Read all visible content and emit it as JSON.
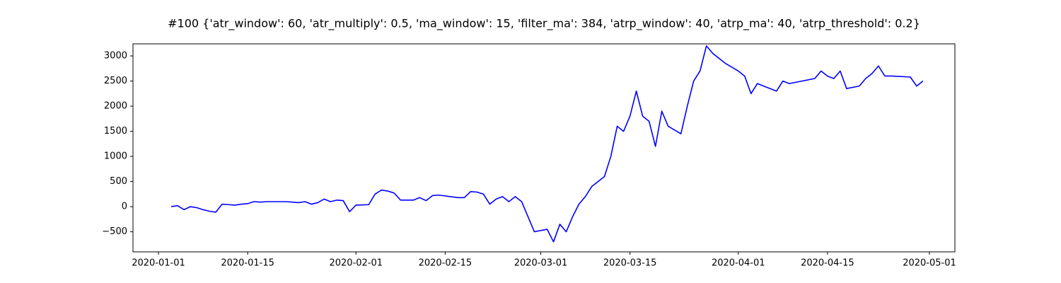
{
  "chart_data": {
    "type": "line",
    "title": "#100 {'atr_window': 60, 'atr_multiply': 0.5, 'ma_window': 15, 'filter_ma': 384, 'atrp_window': 40, 'atrp_ma': 40, 'atrp_threshold': 0.2}",
    "x": [
      "2020-01-03",
      "2020-01-04",
      "2020-01-05",
      "2020-01-06",
      "2020-01-07",
      "2020-01-08",
      "2020-01-09",
      "2020-01-10",
      "2020-01-11",
      "2020-01-12",
      "2020-01-13",
      "2020-01-14",
      "2020-01-15",
      "2020-01-16",
      "2020-01-17",
      "2020-01-18",
      "2020-01-21",
      "2020-01-22",
      "2020-01-23",
      "2020-01-24",
      "2020-01-25",
      "2020-01-26",
      "2020-01-27",
      "2020-01-28",
      "2020-01-29",
      "2020-01-30",
      "2020-01-31",
      "2020-02-01",
      "2020-02-03",
      "2020-02-04",
      "2020-02-05",
      "2020-02-06",
      "2020-02-07",
      "2020-02-08",
      "2020-02-10",
      "2020-02-11",
      "2020-02-12",
      "2020-02-13",
      "2020-02-14",
      "2020-02-17",
      "2020-02-18",
      "2020-02-19",
      "2020-02-20",
      "2020-02-21",
      "2020-02-22",
      "2020-02-23",
      "2020-02-24",
      "2020-02-25",
      "2020-02-26",
      "2020-02-27",
      "2020-02-28",
      "2020-02-29",
      "2020-03-02",
      "2020-03-03",
      "2020-03-04",
      "2020-03-05",
      "2020-03-06",
      "2020-03-07",
      "2020-03-08",
      "2020-03-09",
      "2020-03-10",
      "2020-03-11",
      "2020-03-12",
      "2020-03-13",
      "2020-03-14",
      "2020-03-15",
      "2020-03-16",
      "2020-03-17",
      "2020-03-18",
      "2020-03-19",
      "2020-03-20",
      "2020-03-21",
      "2020-03-23",
      "2020-03-24",
      "2020-03-25",
      "2020-03-26",
      "2020-03-27",
      "2020-03-28",
      "2020-03-30",
      "2020-04-01",
      "2020-04-02",
      "2020-04-03",
      "2020-04-04",
      "2020-04-06",
      "2020-04-07",
      "2020-04-08",
      "2020-04-09",
      "2020-04-13",
      "2020-04-14",
      "2020-04-15",
      "2020-04-16",
      "2020-04-17",
      "2020-04-18",
      "2020-04-20",
      "2020-04-21",
      "2020-04-22",
      "2020-04-23",
      "2020-04-24",
      "2020-04-25",
      "2020-04-28",
      "2020-04-29",
      "2020-04-30"
    ],
    "values": [
      0,
      20,
      -60,
      0,
      -20,
      -60,
      -90,
      -110,
      50,
      40,
      30,
      50,
      60,
      100,
      90,
      100,
      100,
      90,
      80,
      100,
      50,
      80,
      150,
      100,
      130,
      120,
      -100,
      30,
      40,
      250,
      330,
      310,
      270,
      130,
      130,
      180,
      120,
      220,
      230,
      180,
      180,
      300,
      290,
      250,
      50,
      150,
      200,
      100,
      200,
      100,
      -200,
      -500,
      -450,
      -700,
      -350,
      -500,
      -200,
      50,
      200,
      400,
      500,
      600,
      1000,
      1600,
      1500,
      1800,
      2300,
      1800,
      1700,
      1200,
      1900,
      1600,
      1450,
      2000,
      2500,
      2700,
      3200,
      3050,
      2850,
      2700,
      2600,
      2250,
      2450,
      2350,
      2300,
      2500,
      2450,
      2550,
      2700,
      2600,
      2550,
      2700,
      2350,
      2400,
      2550,
      2650,
      2800,
      2600,
      2600,
      2580,
      2400,
      2500
    ],
    "color": "#0000ff",
    "xlim": [
      "2019-12-28",
      "2020-05-05"
    ],
    "xticks": [
      "2020-01-01",
      "2020-01-15",
      "2020-02-01",
      "2020-02-15",
      "2020-03-01",
      "2020-03-15",
      "2020-04-01",
      "2020-04-15",
      "2020-05-01"
    ],
    "ylim": [
      -900,
      3240
    ],
    "yticks": [
      {
        "value": -500,
        "label": "−500"
      },
      0,
      500,
      1000,
      1500,
      2000,
      2500,
      3000
    ],
    "grid": false
  }
}
